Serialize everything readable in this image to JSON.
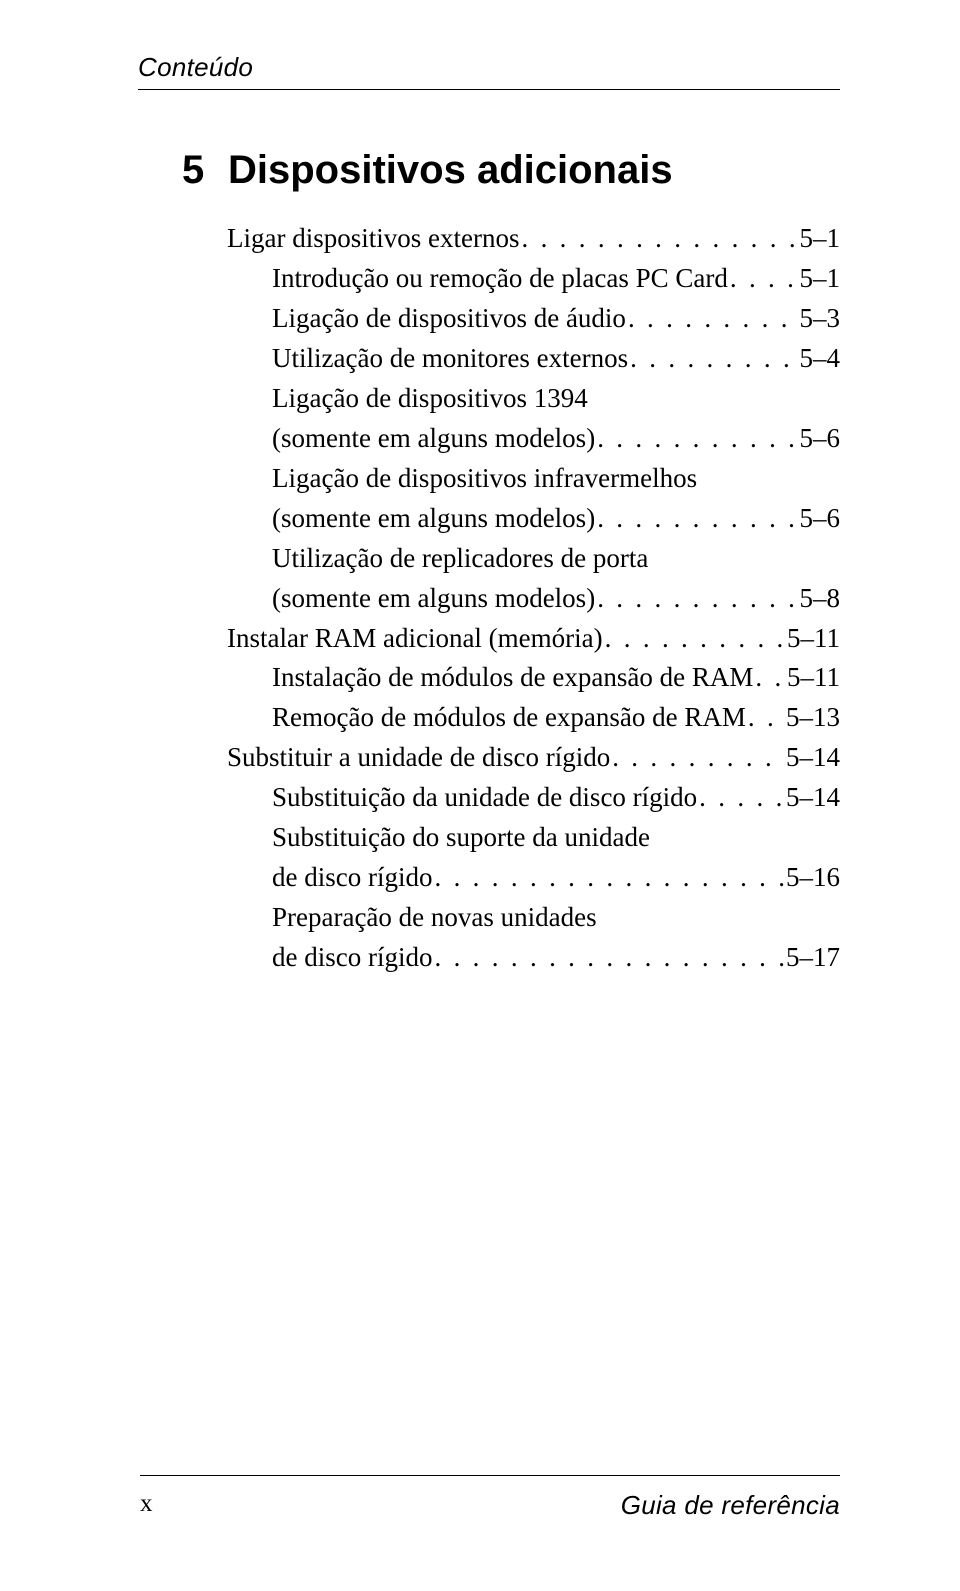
{
  "colors": {
    "text": "#000000",
    "background": "#ffffff",
    "rule": "#000000"
  },
  "fonts": {
    "header": {
      "family": "Arial Narrow",
      "style": "italic",
      "size_pt": 18
    },
    "chapter": {
      "family": "Arial",
      "weight": "bold",
      "size_pt": 28
    },
    "body": {
      "family": "Times New Roman",
      "size_pt": 19
    }
  },
  "header": {
    "text": "Conteúdo"
  },
  "chapter": {
    "number": "5",
    "title": "Dispositivos adicionais"
  },
  "toc": {
    "dotfill": " . . . . . . . . . . . . . . . . . . . . . . . . . . . . . . . . . . . . . . . . . . . . . . . . . . . . . . . . . . . . . . . . . . . . . . . . . . . . . . . . . . . . . .",
    "entries": [
      {
        "indent": 1,
        "lines": [
          "Ligar dispositivos externos"
        ],
        "page": "5–1"
      },
      {
        "indent": 2,
        "lines": [
          "Introdução ou remoção de placas PC Card"
        ],
        "page": "5–1"
      },
      {
        "indent": 2,
        "lines": [
          "Ligação de dispositivos de áudio"
        ],
        "page": "5–3"
      },
      {
        "indent": 2,
        "lines": [
          "Utilização de monitores externos"
        ],
        "page": "5–4"
      },
      {
        "indent": 2,
        "lines": [
          "Ligação de dispositivos 1394",
          "(somente em alguns modelos)"
        ],
        "page": "5–6"
      },
      {
        "indent": 2,
        "lines": [
          "Ligação de dispositivos infravermelhos",
          "(somente em alguns modelos)"
        ],
        "page": "5–6"
      },
      {
        "indent": 2,
        "lines": [
          "Utilização de replicadores de porta",
          "(somente em alguns modelos)"
        ],
        "page": "5–8"
      },
      {
        "indent": 1,
        "lines": [
          "Instalar RAM adicional (memória)"
        ],
        "page": "5–11"
      },
      {
        "indent": 2,
        "lines": [
          "Instalação de módulos de expansão de RAM"
        ],
        "page": "5–11"
      },
      {
        "indent": 2,
        "lines": [
          "Remoção de módulos de expansão de RAM"
        ],
        "page": "5–13"
      },
      {
        "indent": 1,
        "lines": [
          "Substituir a unidade de disco rígido"
        ],
        "page": "5–14"
      },
      {
        "indent": 2,
        "lines": [
          "Substituição da unidade de disco rígido"
        ],
        "page": "5–14"
      },
      {
        "indent": 2,
        "lines": [
          "Substituição do suporte da unidade",
          "de disco rígido"
        ],
        "page": "5–16"
      },
      {
        "indent": 2,
        "lines": [
          "Preparação de novas unidades",
          "de disco rígido"
        ],
        "page": "5–17"
      }
    ]
  },
  "footer": {
    "left": "x",
    "right": "Guia de referência"
  }
}
